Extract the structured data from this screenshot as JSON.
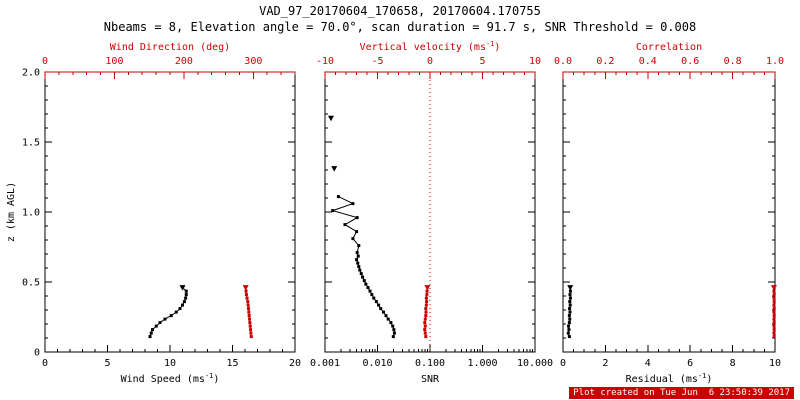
{
  "title": "VAD_97_20170604_170658, 20170604.170755",
  "subtitle": "Nbeams = 8, Elevation angle = 70.0°, scan duration = 91.7 s, SNR Threshold = 0.008",
  "footer": "Plot created on Tue Jun  6 23:50:39 2017",
  "colors": {
    "primary": "#000000",
    "secondary": "#cc0000",
    "footer_bg": "#cc0000",
    "footer_text": "#ffffff"
  },
  "yaxis": {
    "label": "z (km AGL)",
    "min": 0,
    "max": 2,
    "ticks": [
      0,
      0.5,
      1,
      1.5,
      2
    ],
    "tick_labels": [
      "0",
      "0.5",
      "1.0",
      "1.5",
      "2.0"
    ],
    "minor_step": 0.1
  },
  "chart_data": [
    {
      "type": "scatter",
      "x_bottom": {
        "label": "Wind Speed (ms^{-1})",
        "min": 0,
        "max": 20,
        "scale": "linear",
        "ticks": [
          0,
          5,
          10,
          15,
          20
        ],
        "tick_labels": [
          "0",
          "5",
          "10",
          "15",
          "20"
        ],
        "minor_step": 1
      },
      "x_top": {
        "label": "Wind Direction (deg)",
        "min": 0,
        "max": 360,
        "scale": "linear",
        "ticks": [
          0,
          100,
          200,
          300
        ],
        "tick_labels": [
          "0",
          "100",
          "200",
          "300"
        ],
        "minor_step": 20
      },
      "series": [
        {
          "name": "wind_speed",
          "axis": "bottom",
          "color": "#000000",
          "marker": "square",
          "last_marker": "triangle-down",
          "connect": true,
          "z": [
            0.11,
            0.135,
            0.16,
            0.185,
            0.21,
            0.235,
            0.26,
            0.285,
            0.31,
            0.335,
            0.36,
            0.385,
            0.41,
            0.435,
            0.46
          ],
          "values": [
            8.4,
            8.5,
            8.6,
            8.9,
            9.2,
            9.6,
            10.1,
            10.5,
            10.8,
            11.0,
            11.15,
            11.25,
            11.3,
            11.3,
            11.0
          ]
        },
        {
          "name": "wind_direction",
          "axis": "top",
          "color": "#cc0000",
          "marker": "square",
          "last_marker": "triangle-down",
          "connect": true,
          "z": [
            0.11,
            0.135,
            0.16,
            0.185,
            0.21,
            0.235,
            0.26,
            0.285,
            0.31,
            0.335,
            0.36,
            0.385,
            0.41,
            0.435,
            0.46
          ],
          "values": [
            297,
            296.5,
            296,
            295.5,
            295,
            294.5,
            294,
            293.5,
            293,
            292.5,
            292,
            291,
            290,
            289.5,
            289
          ]
        }
      ]
    },
    {
      "type": "scatter",
      "x_bottom": {
        "label": "SNR",
        "min": 0.001,
        "max": 10,
        "scale": "log",
        "ticks": [
          0.001,
          0.01,
          0.1,
          1,
          10
        ],
        "tick_labels": [
          "0.001",
          "0.010",
          "0.100",
          "1.000",
          "10.000"
        ]
      },
      "x_top": {
        "label": "Vertical velocity (ms^{-1})",
        "min": -10,
        "max": 10,
        "scale": "linear",
        "ticks": [
          -10,
          -5,
          0,
          5,
          10
        ],
        "tick_labels": [
          "-10",
          "-5",
          "0",
          "5",
          "10"
        ],
        "minor_step": 1
      },
      "reference_line": {
        "axis": "top",
        "value": 0,
        "color": "#cc0000",
        "style": "dotted"
      },
      "series": [
        {
          "name": "snr",
          "axis": "bottom",
          "color": "#000000",
          "marker": "square",
          "connect": true,
          "z": [
            0.11,
            0.135,
            0.16,
            0.185,
            0.21,
            0.235,
            0.26,
            0.285,
            0.31,
            0.335,
            0.36,
            0.385,
            0.41,
            0.435,
            0.46,
            0.485,
            0.51,
            0.535,
            0.56,
            0.585,
            0.61,
            0.635,
            0.66,
            0.685,
            0.71,
            0.76,
            0.81,
            0.86,
            0.91,
            0.96,
            1.01,
            1.06,
            1.11
          ],
          "values": [
            0.02,
            0.021,
            0.0205,
            0.0195,
            0.018,
            0.016,
            0.0145,
            0.013,
            0.0115,
            0.0105,
            0.0095,
            0.0085,
            0.0078,
            0.0072,
            0.0066,
            0.006,
            0.0056,
            0.0052,
            0.0049,
            0.0046,
            0.0044,
            0.0042,
            0.004,
            0.0043,
            0.0041,
            0.0044,
            0.0034,
            0.004,
            0.0024,
            0.0041,
            0.0014,
            0.0034,
            0.0018
          ]
        },
        {
          "name": "snr_isolated",
          "axis": "bottom",
          "color": "#000000",
          "marker": "triangle-down",
          "connect": false,
          "z": [
            1.31,
            1.67
          ],
          "values": [
            0.0015,
            0.0013
          ]
        },
        {
          "name": "vertical_velocity",
          "axis": "top",
          "color": "#cc0000",
          "marker": "square",
          "last_marker": "triangle-down",
          "connect": true,
          "z": [
            0.11,
            0.135,
            0.16,
            0.185,
            0.21,
            0.235,
            0.26,
            0.285,
            0.31,
            0.335,
            0.36,
            0.385,
            0.41,
            0.435,
            0.46
          ],
          "values": [
            -0.4,
            -0.45,
            -0.5,
            -0.45,
            -0.5,
            -0.45,
            -0.4,
            -0.38,
            -0.4,
            -0.35,
            -0.32,
            -0.35,
            -0.3,
            -0.28,
            -0.25
          ]
        }
      ]
    },
    {
      "type": "scatter",
      "x_bottom": {
        "label": "Residual (ms^{-1})",
        "min": 0,
        "max": 10,
        "scale": "linear",
        "ticks": [
          0,
          2,
          4,
          6,
          8,
          10
        ],
        "tick_labels": [
          "0",
          "2",
          "4",
          "6",
          "8",
          "10"
        ],
        "minor_step": 0.5
      },
      "x_top": {
        "label": "Correlation",
        "min": 0,
        "max": 1,
        "scale": "linear",
        "ticks": [
          0,
          0.2,
          0.4,
          0.6,
          0.8,
          1
        ],
        "tick_labels": [
          "0.0",
          "0.2",
          "0.4",
          "0.6",
          "0.8",
          "1.0"
        ],
        "minor_step": 0.05
      },
      "series": [
        {
          "name": "residual",
          "axis": "bottom",
          "color": "#000000",
          "marker": "square",
          "last_marker": "triangle-down",
          "connect": true,
          "z": [
            0.11,
            0.135,
            0.16,
            0.185,
            0.21,
            0.235,
            0.26,
            0.285,
            0.31,
            0.335,
            0.36,
            0.385,
            0.41,
            0.435,
            0.46
          ],
          "values": [
            0.3,
            0.25,
            0.28,
            0.26,
            0.3,
            0.32,
            0.3,
            0.33,
            0.31,
            0.34,
            0.32,
            0.35,
            0.33,
            0.35,
            0.34
          ]
        },
        {
          "name": "correlation",
          "axis": "top",
          "color": "#cc0000",
          "marker": "square",
          "last_marker": "triangle-down",
          "connect": true,
          "z": [
            0.11,
            0.135,
            0.16,
            0.185,
            0.21,
            0.235,
            0.26,
            0.285,
            0.31,
            0.335,
            0.36,
            0.385,
            0.41,
            0.435,
            0.46
          ],
          "values": [
            0.996,
            0.995,
            0.996,
            0.995,
            0.996,
            0.995,
            0.996,
            0.995,
            0.996,
            0.995,
            0.996,
            0.995,
            0.996,
            0.995,
            0.995
          ]
        }
      ]
    }
  ]
}
